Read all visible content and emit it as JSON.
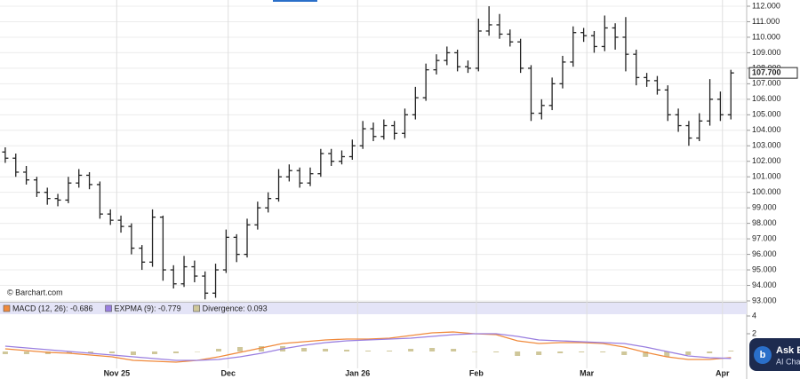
{
  "chart_data": [
    {
      "type": "ohlc",
      "color": "#222222",
      "grid": true,
      "ylim": [
        93,
        112
      ],
      "yticks": [
        {
          "value": 93,
          "label": "93.000"
        },
        {
          "value": 94,
          "label": "94.000"
        },
        {
          "value": 95,
          "label": "95.000"
        },
        {
          "value": 96,
          "label": "96.000"
        },
        {
          "value": 97,
          "label": "97.000"
        },
        {
          "value": 98,
          "label": "98.000"
        },
        {
          "value": 99,
          "label": "99.000"
        },
        {
          "value": 100,
          "label": "100.000"
        },
        {
          "value": 101,
          "label": "101.000"
        },
        {
          "value": 102,
          "label": "102.000"
        },
        {
          "value": 103,
          "label": "103.000"
        },
        {
          "value": 104,
          "label": "104.000"
        },
        {
          "value": 105,
          "label": "105.000"
        },
        {
          "value": 106,
          "label": "106.000"
        },
        {
          "value": 107,
          "label": "107.000"
        },
        {
          "value": 108,
          "label": "108.000"
        },
        {
          "value": 109,
          "label": "109.000"
        },
        {
          "value": 110,
          "label": "110.000"
        },
        {
          "value": 111,
          "label": "111.000"
        },
        {
          "value": 112,
          "label": "112.000"
        }
      ],
      "xlim": [
        -0.5,
        70.5
      ],
      "xticks": [
        {
          "value": 10.6,
          "label": "Nov 25"
        },
        {
          "value": 21.2,
          "label": "Dec"
        },
        {
          "value": 33.5,
          "label": "Jan 26"
        },
        {
          "value": 44.8,
          "label": "Feb"
        },
        {
          "value": 55.3,
          "label": "Mar"
        },
        {
          "value": 68.2,
          "label": "Apr"
        }
      ],
      "last_label": "107.700",
      "open": [
        102.6,
        102.2,
        101.3,
        100.8,
        100.0,
        99.6,
        99.5,
        100.6,
        101.1,
        100.5,
        98.6,
        98.2,
        97.8,
        96.4,
        95.5,
        98.4,
        95.0,
        94.1,
        95.2,
        94.6,
        93.5,
        95.0,
        97.1,
        96.0,
        97.9,
        99.0,
        99.6,
        101.0,
        101.4,
        100.6,
        101.2,
        102.5,
        102.0,
        102.3,
        103.0,
        104.1,
        103.6,
        104.3,
        103.8,
        105.0,
        106.1,
        107.9,
        108.5,
        109.0,
        108.1,
        108.0,
        110.4,
        110.8,
        110.2,
        109.7,
        108.0,
        105.1,
        105.6,
        107.0,
        108.4,
        110.3,
        110.1,
        109.4,
        110.6,
        110.0,
        108.9,
        107.4,
        107.2,
        106.6,
        105.0,
        104.3,
        103.5,
        104.6,
        106.0,
        105.0
      ],
      "high": [
        102.9,
        102.5,
        101.7,
        101.0,
        100.3,
        99.9,
        101.0,
        101.5,
        101.3,
        100.7,
        98.9,
        98.5,
        98.0,
        96.6,
        98.9,
        98.5,
        95.3,
        95.9,
        95.6,
        94.9,
        95.4,
        97.6,
        97.3,
        98.3,
        99.4,
        100.0,
        101.5,
        101.8,
        101.6,
        101.6,
        102.8,
        102.8,
        102.7,
        103.4,
        104.6,
        104.5,
        104.7,
        104.6,
        105.4,
        106.8,
        108.3,
        108.9,
        109.4,
        109.2,
        108.5,
        111.2,
        112.0,
        111.5,
        110.5,
        109.9,
        108.2,
        106.0,
        107.4,
        108.8,
        110.7,
        110.6,
        110.4,
        111.4,
        110.9,
        111.3,
        109.2,
        107.7,
        107.5,
        106.9,
        105.4,
        104.6,
        105.1,
        107.3,
        106.5,
        107.9
      ],
      "low": [
        101.9,
        101.0,
        100.5,
        99.7,
        99.2,
        99.1,
        99.3,
        100.3,
        100.2,
        98.3,
        97.9,
        97.4,
        96.0,
        95.0,
        95.2,
        94.3,
        93.8,
        93.9,
        94.2,
        93.1,
        93.2,
        94.8,
        95.5,
        95.8,
        97.6,
        98.7,
        99.4,
        100.7,
        100.3,
        100.4,
        101.0,
        101.7,
        101.8,
        102.1,
        102.8,
        103.3,
        103.4,
        103.4,
        103.5,
        104.7,
        105.9,
        107.6,
        108.2,
        107.8,
        107.7,
        107.8,
        110.1,
        109.9,
        109.4,
        107.7,
        104.6,
        104.7,
        105.3,
        106.7,
        108.1,
        109.7,
        109.0,
        109.1,
        109.2,
        107.8,
        106.9,
        106.8,
        106.3,
        104.6,
        103.9,
        103.0,
        103.3,
        104.3,
        104.6,
        104.7
      ],
      "close": [
        102.2,
        101.3,
        100.8,
        100.0,
        99.6,
        99.5,
        100.6,
        101.1,
        100.5,
        98.6,
        98.2,
        97.8,
        96.4,
        95.5,
        98.4,
        95.0,
        94.1,
        95.2,
        94.6,
        93.5,
        95.0,
        97.1,
        96.0,
        97.9,
        99.0,
        99.6,
        101.0,
        101.4,
        100.6,
        101.2,
        102.5,
        102.0,
        102.3,
        103.0,
        104.1,
        103.6,
        104.3,
        103.8,
        105.0,
        106.1,
        107.9,
        108.5,
        109.0,
        108.1,
        108.0,
        110.4,
        110.8,
        110.2,
        109.7,
        108.0,
        105.1,
        105.6,
        107.0,
        108.4,
        110.3,
        110.1,
        109.4,
        110.6,
        110.0,
        108.9,
        107.4,
        107.2,
        106.6,
        105.0,
        104.3,
        103.5,
        104.6,
        106.0,
        105.0,
        107.7
      ]
    },
    {
      "type": "macd",
      "ylim": [
        -2,
        4
      ],
      "yticks": [
        2,
        4
      ],
      "series": [
        {
          "name": "MACD (12, 26): -0.686",
          "color": "#f08a3c",
          "values": [
            0.3,
            0.1,
            -0.1,
            -0.2,
            -0.4,
            -0.6,
            -1.0,
            -1.1,
            -1.2,
            -1.0,
            -0.6,
            -0.1,
            0.4,
            0.9,
            1.1,
            1.3,
            1.4,
            1.4,
            1.5,
            1.8,
            2.1,
            2.2,
            2.0,
            1.9,
            1.2,
            0.9,
            1.0,
            1.0,
            0.9,
            0.5,
            -0.1,
            -0.6,
            -0.9,
            -0.9,
            -0.686
          ]
        },
        {
          "name": "EXPMA (9): -0.779",
          "color": "#9a7fe0",
          "values": [
            0.6,
            0.4,
            0.2,
            0.0,
            -0.2,
            -0.4,
            -0.6,
            -0.8,
            -1.0,
            -1.0,
            -0.9,
            -0.6,
            -0.2,
            0.3,
            0.7,
            1.0,
            1.2,
            1.3,
            1.4,
            1.5,
            1.7,
            1.9,
            2.0,
            2.0,
            1.7,
            1.3,
            1.2,
            1.1,
            1.0,
            0.9,
            0.5,
            0.0,
            -0.5,
            -0.7,
            -0.779
          ]
        },
        {
          "name": "Divergence: 0.093",
          "color": "#cfc79a",
          "values": [
            -0.3,
            -0.3,
            -0.3,
            -0.2,
            -0.2,
            -0.2,
            -0.4,
            -0.3,
            -0.2,
            0,
            0.3,
            0.5,
            0.6,
            0.6,
            0.4,
            0.3,
            0.2,
            0.1,
            0.1,
            0.3,
            0.4,
            0.3,
            0.0,
            -0.1,
            -0.5,
            -0.4,
            -0.2,
            -0.1,
            -0.1,
            -0.4,
            -0.6,
            -0.6,
            -0.4,
            -0.2,
            0.093
          ]
        }
      ]
    }
  ],
  "watermark": "© Barchart.com",
  "widget": {
    "title": "Ask B",
    "subtitle": "AI Cha"
  }
}
